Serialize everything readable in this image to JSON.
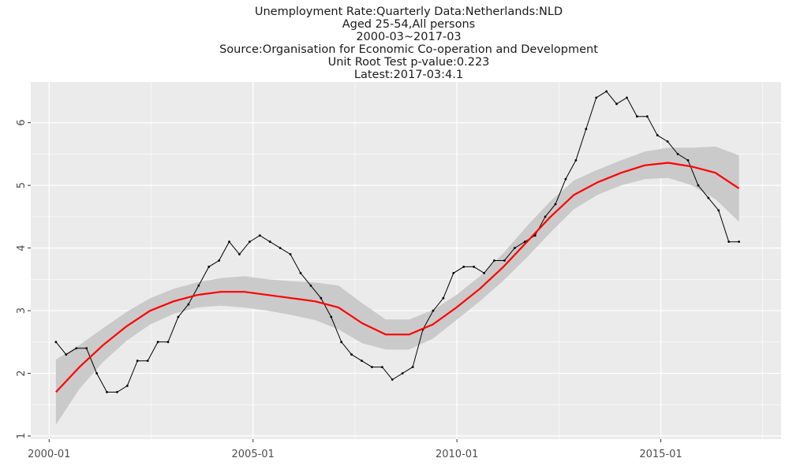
{
  "chart_data": {
    "type": "line",
    "title_lines": [
      "Unemployment Rate:Quarterly Data:Netherlands:NLD",
      "Aged 25-54,All persons",
      "2000-03~2017-03",
      "Source:Organisation for Economic Co-operation and Development",
      "Unit Root Test p-value:0.223",
      "Latest:2017-03:4.1"
    ],
    "xlabel": "",
    "ylabel": "",
    "x_ticks": [
      "2000-01",
      "2005-01",
      "2010-01",
      "2015-01"
    ],
    "x_tick_years": [
      2000,
      2005,
      2010,
      2015
    ],
    "y_ticks": [
      1,
      2,
      3,
      4,
      5,
      6
    ],
    "xlim": [
      1999.55,
      2017.95
    ],
    "ylim": [
      0.95,
      6.65
    ],
    "grid": true,
    "legend": "none",
    "colors": {
      "panel": "#ebebeb",
      "grid": "#ffffff",
      "line": "#000000",
      "smooth": "#ff0000",
      "band": "#c8c8c8"
    },
    "series": [
      {
        "values": [
          2.5,
          2.3,
          2.4,
          2.4,
          2.0,
          1.7,
          1.7,
          1.8,
          2.2,
          2.2,
          2.5,
          2.5,
          2.9,
          3.1,
          3.4,
          3.7,
          3.8,
          4.1,
          3.9,
          4.1,
          4.2,
          4.1,
          4.0,
          3.9,
          3.6,
          3.4,
          3.2,
          2.9,
          2.5,
          2.3,
          2.2,
          2.1,
          2.1,
          1.9,
          2.0,
          2.1,
          2.7,
          3.0,
          3.2,
          3.6,
          3.7,
          3.7,
          3.6,
          3.8,
          3.8,
          4.0,
          4.1,
          4.2,
          4.5,
          4.7,
          5.1,
          5.4,
          5.9,
          6.4,
          6.5,
          6.3,
          6.4,
          6.1,
          6.1,
          5.8,
          5.7,
          5.5,
          5.4,
          5.0,
          4.8,
          4.6,
          4.1,
          4.1
        ]
      },
      {
        "type": "smooth",
        "values": [
          1.7,
          2.1,
          2.45,
          2.75,
          3.0,
          3.15,
          3.25,
          3.3,
          3.3,
          3.25,
          3.2,
          3.15,
          3.05,
          2.8,
          2.62,
          2.62,
          2.78,
          3.05,
          3.35,
          3.7,
          4.1,
          4.5,
          4.85,
          5.05,
          5.2,
          5.32,
          5.36,
          5.3,
          5.2,
          4.95
        ],
        "lower": [
          1.18,
          1.75,
          2.18,
          2.52,
          2.78,
          2.95,
          3.05,
          3.08,
          3.05,
          3.0,
          2.93,
          2.85,
          2.7,
          2.48,
          2.38,
          2.38,
          2.55,
          2.85,
          3.15,
          3.48,
          3.85,
          4.25,
          4.62,
          4.85,
          5.0,
          5.1,
          5.12,
          5.0,
          4.78,
          4.42
        ],
        "upper": [
          2.22,
          2.45,
          2.72,
          2.98,
          3.2,
          3.35,
          3.45,
          3.52,
          3.55,
          3.5,
          3.47,
          3.45,
          3.4,
          3.12,
          2.86,
          2.86,
          3.01,
          3.25,
          3.55,
          3.92,
          4.35,
          4.75,
          5.08,
          5.25,
          5.4,
          5.54,
          5.6,
          5.6,
          5.62,
          5.48
        ]
      }
    ]
  }
}
